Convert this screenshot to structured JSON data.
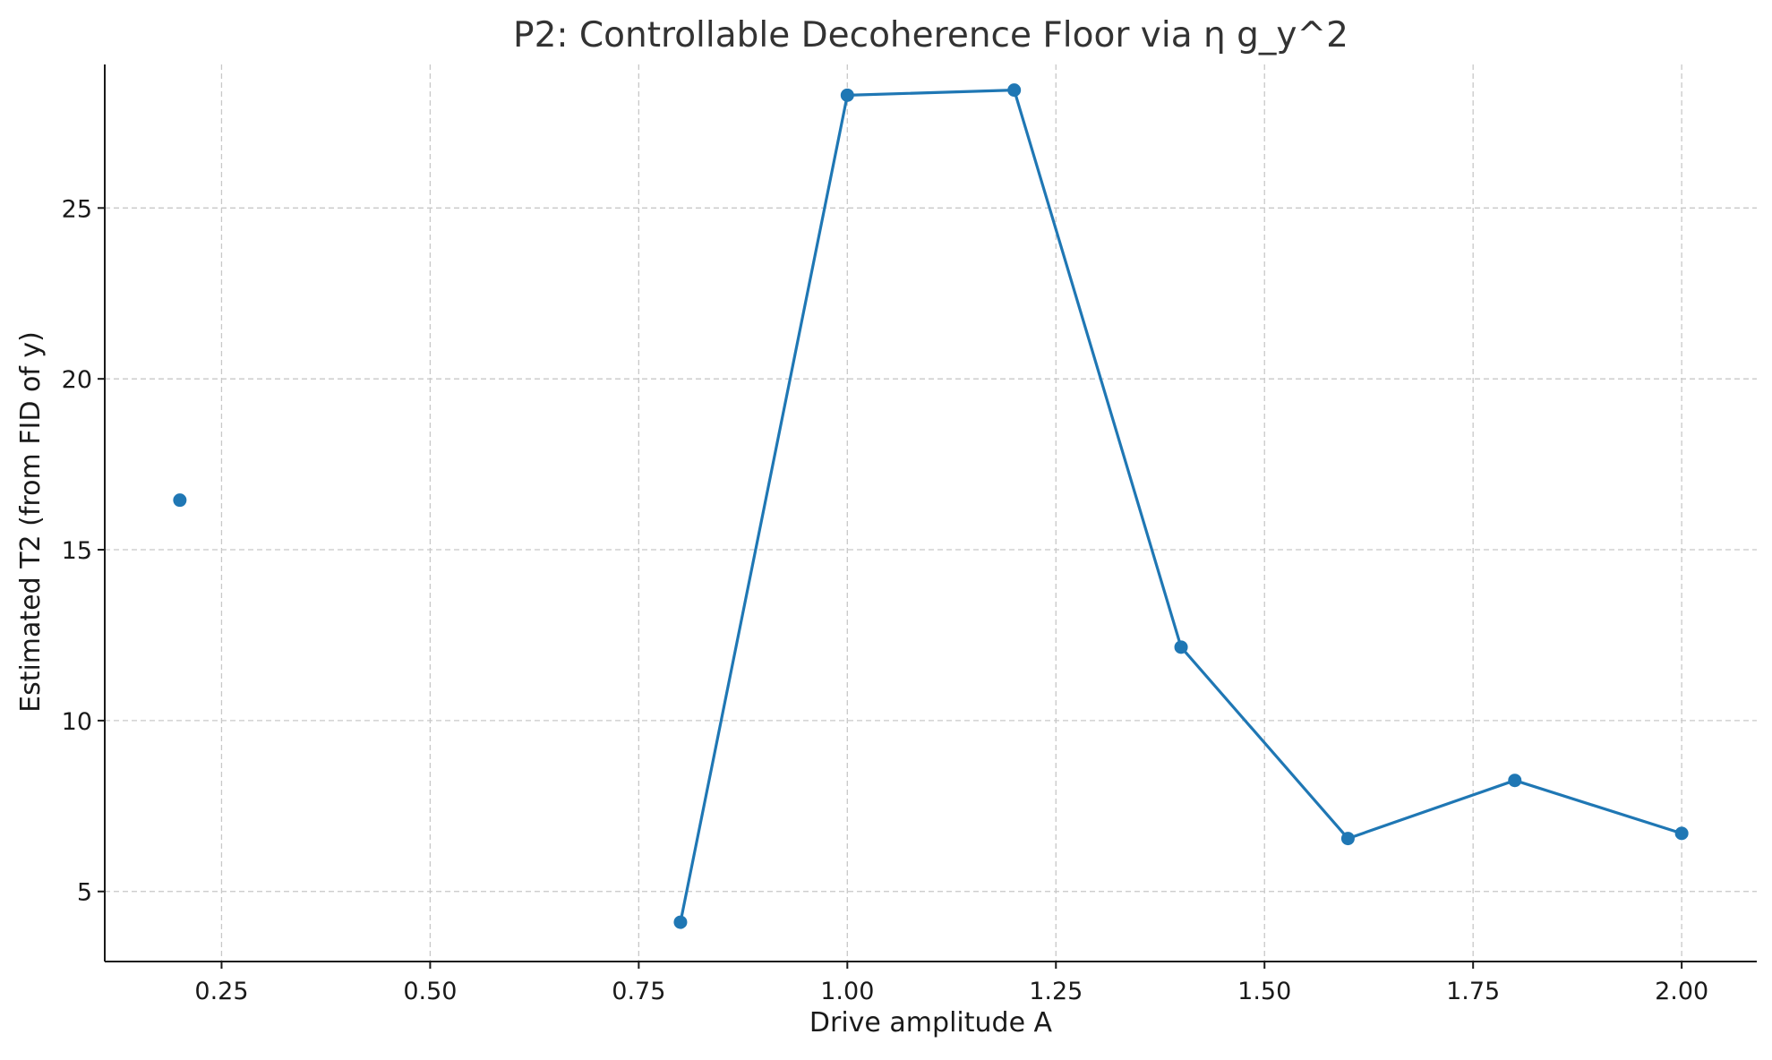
{
  "chart_data": {
    "type": "line",
    "title": "P2: Controllable Decoherence Floor via η g_y^2",
    "xlabel": "Drive amplitude A",
    "ylabel": "Estimated T2 (from FID of y)",
    "xlim": [
      0.11,
      2.09
    ],
    "ylim": [
      2.95,
      29.2
    ],
    "x_ticks": [
      0.25,
      0.5,
      0.75,
      1.0,
      1.25,
      1.5,
      1.75,
      2.0
    ],
    "x_tick_labels": [
      "0.25",
      "0.50",
      "0.75",
      "1.00",
      "1.25",
      "1.50",
      "1.75",
      "2.00"
    ],
    "y_ticks": [
      5,
      10,
      15,
      20,
      25
    ],
    "y_tick_labels": [
      "5",
      "10",
      "15",
      "20",
      "25"
    ],
    "grid": true,
    "series": [
      {
        "color": "#1f77b4",
        "marker": "circle",
        "points": [
          {
            "x": 0.2,
            "y": 16.45
          },
          {
            "x": 0.4,
            "y": null
          },
          {
            "x": 0.6,
            "y": null
          },
          {
            "x": 0.8,
            "y": 4.1
          },
          {
            "x": 1.0,
            "y": 28.3
          },
          {
            "x": 1.2,
            "y": 28.45
          },
          {
            "x": 1.4,
            "y": 12.15
          },
          {
            "x": 1.6,
            "y": 6.55
          },
          {
            "x": 1.8,
            "y": 8.25
          },
          {
            "x": 2.0,
            "y": 6.7
          }
        ]
      }
    ]
  }
}
